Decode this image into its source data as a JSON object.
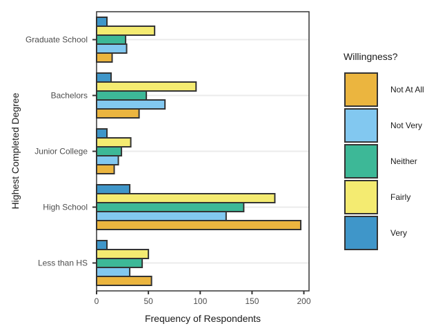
{
  "chart_data": {
    "type": "bar",
    "orientation": "horizontal",
    "categories": [
      "Less than HS",
      "High School",
      "Junior College",
      "Bachelors",
      "Graduate School"
    ],
    "series": [
      {
        "name": "Not At All",
        "color": "#EBB53F",
        "values": [
          53,
          197,
          17,
          41,
          15
        ]
      },
      {
        "name": "Not Very",
        "color": "#82C8F0",
        "values": [
          32,
          125,
          21,
          66,
          29
        ]
      },
      {
        "name": "Neither",
        "color": "#3DB897",
        "values": [
          44,
          142,
          24,
          48,
          28
        ]
      },
      {
        "name": "Fairly",
        "color": "#F4EB71",
        "values": [
          50,
          172,
          33,
          96,
          56
        ]
      },
      {
        "name": "Very",
        "color": "#3F96C9",
        "values": [
          10,
          32,
          10,
          14,
          10
        ]
      }
    ],
    "xlabel": "Frequency of Respondents",
    "ylabel": "Highest Completed Degree",
    "xlim": [
      0,
      205
    ],
    "xticks": [
      0,
      50,
      100,
      150,
      200
    ],
    "grid": "horizontal",
    "legend": {
      "title": "Willingness?",
      "position": "right"
    }
  }
}
